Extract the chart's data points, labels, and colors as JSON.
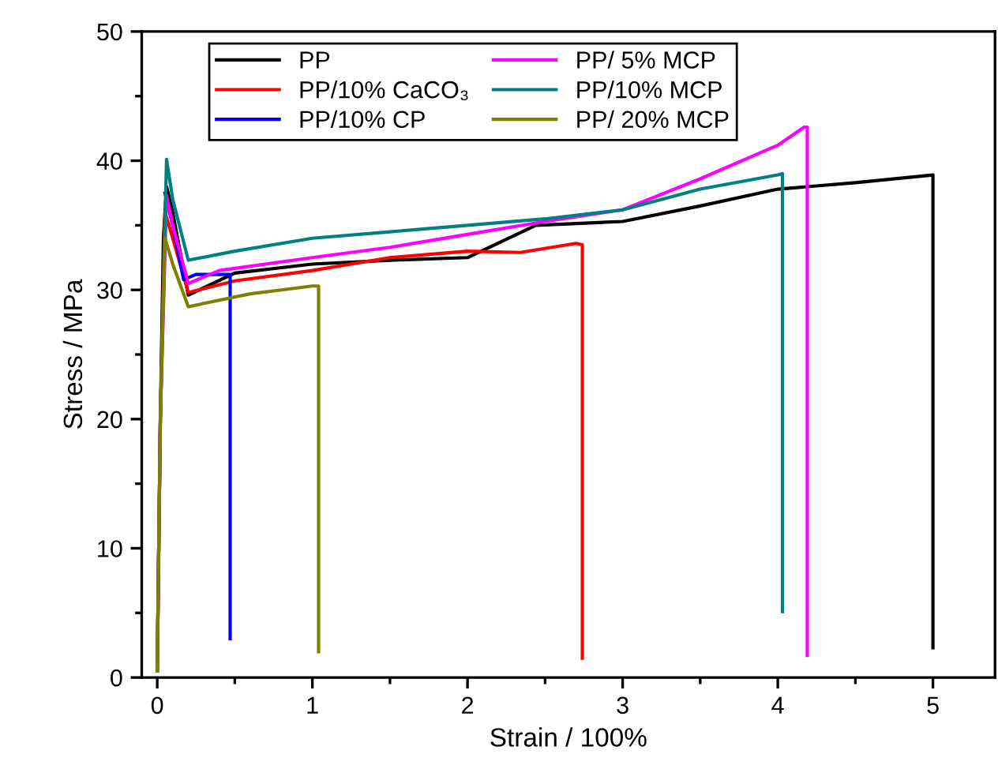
{
  "chart_data": {
    "type": "line",
    "xlabel": "Strain / 100%",
    "ylabel": "Stress / MPa",
    "xlim": [
      -0.1,
      5.4
    ],
    "xticks": [
      0,
      1,
      2,
      3,
      4,
      5
    ],
    "ylim": [
      0,
      50
    ],
    "yticks": [
      0,
      10,
      20,
      30,
      40,
      50
    ],
    "grid": false,
    "legend": "top left",
    "marker": "none",
    "line_style": "solid",
    "series": [
      {
        "name": "PP",
        "color": "#000000",
        "x": [
          0.0,
          0.02,
          0.04,
          0.06,
          0.1,
          0.2,
          0.5,
          1.0,
          1.5,
          2.0,
          2.44,
          3.0,
          3.5,
          4.0,
          4.5,
          5.0,
          5.0
        ],
        "values": [
          0.5,
          20,
          34,
          38,
          36,
          29.6,
          31.3,
          32,
          32.3,
          32.5,
          35.0,
          35.3,
          36.5,
          37.8,
          38.3,
          38.9,
          2.3
        ]
      },
      {
        "name": "PP/10% CaCO₃",
        "color": "#ff0000",
        "x": [
          0.0,
          0.02,
          0.05,
          0.1,
          0.2,
          0.5,
          1.0,
          1.5,
          2.0,
          2.34,
          2.7,
          2.74,
          2.74
        ],
        "values": [
          0.5,
          20,
          36,
          34,
          29.8,
          30.7,
          31.5,
          32.5,
          33,
          32.9,
          33.6,
          33.5,
          1.5
        ]
      },
      {
        "name": "PP/10% CP",
        "color": "#0000ff",
        "x": [
          0.05,
          0.1,
          0.17,
          0.25,
          0.47,
          0.47
        ],
        "values": [
          37.5,
          35,
          30.8,
          31.2,
          31.2,
          3.0
        ]
      },
      {
        "name": "PP/ 5% MCP",
        "color": "#ff00ff",
        "x": [
          0.0,
          0.02,
          0.06,
          0.1,
          0.2,
          0.4,
          1.0,
          1.5,
          2.0,
          2.5,
          3.0,
          3.5,
          4.0,
          4.17,
          4.19,
          4.19
        ],
        "values": [
          0.5,
          20,
          37.3,
          35,
          30.5,
          31.5,
          32.5,
          33.3,
          34.3,
          35.3,
          36.2,
          38.6,
          41.2,
          42.6,
          42.6,
          1.7
        ]
      },
      {
        "name": "PP/10% MCP",
        "color": "#008080",
        "x": [
          0.0,
          0.02,
          0.06,
          0.1,
          0.2,
          0.5,
          1.0,
          1.5,
          2.0,
          2.5,
          3.0,
          3.5,
          4.0,
          4.03,
          4.03
        ],
        "values": [
          0.5,
          20,
          40.1,
          37,
          32.3,
          33.0,
          34,
          34.5,
          35,
          35.5,
          36.2,
          37.8,
          38.9,
          39.0,
          5.1
        ]
      },
      {
        "name": "PP/ 20% MCP",
        "color": "#808000",
        "x": [
          0.0,
          0.02,
          0.05,
          0.1,
          0.2,
          0.4,
          0.6,
          0.8,
          1.0,
          1.04,
          1.04
        ],
        "values": [
          0.5,
          20,
          34,
          32,
          28.7,
          29.2,
          29.7,
          30,
          30.3,
          30.3,
          2.0
        ]
      }
    ]
  }
}
